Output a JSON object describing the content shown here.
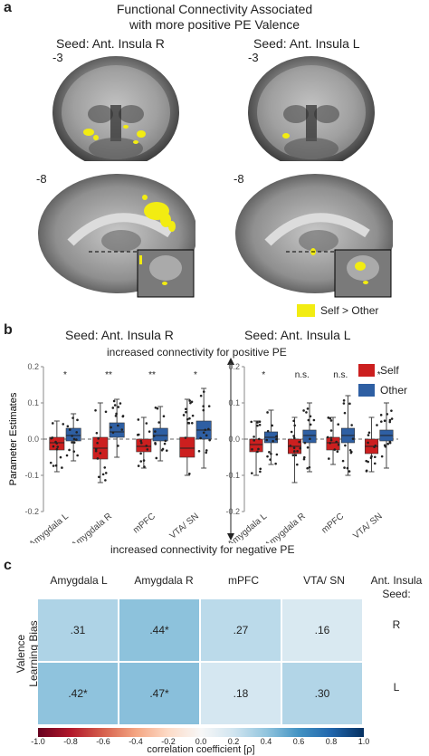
{
  "panel_a": {
    "letter": "a",
    "title_line1": "Functional Connectivity Associated",
    "title_line2": "with more positive PE Valence",
    "seed_right": "Seed: Ant. Insula R",
    "seed_left": "Seed: Ant. Insula L",
    "slice_top": "-3",
    "slice_bottom": "-8",
    "legend_label": "Self > Other",
    "legend_color": "#f2ec12"
  },
  "panel_b": {
    "letter": "b",
    "seed_right": "Seed: Ant. Insula R",
    "seed_left": "Seed: Ant. Insula L",
    "top_arrow_label": "increased connectivity for positive PE",
    "bottom_arrow_label": "increased connectivity for negative PE",
    "ylabel": "Parameter Estimates",
    "legend": [
      {
        "label": "Self",
        "color": "#cc1f1f"
      },
      {
        "label": "Other",
        "color": "#2e5fa3"
      }
    ]
  },
  "chart_data": {
    "type": "boxplot",
    "ylabel": "Parameter Estimates",
    "ylim": [
      -0.2,
      0.2
    ],
    "yticks": [
      "0.2",
      "0.1",
      "0.0",
      "-0.1",
      "-0.2"
    ],
    "categories": [
      "Amygdala L",
      "Amygdala R",
      "mPFC",
      "VTA/ SN"
    ],
    "series": [
      {
        "name": "Self",
        "color": "#cc1f1f"
      },
      {
        "name": "Other",
        "color": "#2e5fa3"
      }
    ],
    "panels": [
      {
        "seed": "Seed: Ant. Insula R",
        "significance": [
          "*",
          "**",
          "**",
          "*"
        ],
        "boxes": [
          {
            "category": "Amygdala L",
            "self": {
              "q1": -0.03,
              "median": -0.01,
              "q3": 0.005,
              "lo": -0.09,
              "hi": 0.05
            },
            "other": {
              "q1": -0.005,
              "median": 0.01,
              "q3": 0.03,
              "lo": -0.06,
              "hi": 0.07
            }
          },
          {
            "category": "Amygdala R",
            "self": {
              "q1": -0.055,
              "median": -0.025,
              "q3": 0.005,
              "lo": -0.12,
              "hi": 0.1
            },
            "other": {
              "q1": 0.005,
              "median": 0.02,
              "q3": 0.045,
              "lo": -0.05,
              "hi": 0.11
            }
          },
          {
            "category": "mPFC",
            "self": {
              "q1": -0.035,
              "median": -0.02,
              "q3": 0.0,
              "lo": -0.08,
              "hi": 0.06
            },
            "other": {
              "q1": -0.005,
              "median": 0.01,
              "q3": 0.03,
              "lo": -0.06,
              "hi": 0.09
            }
          },
          {
            "category": "VTA/ SN",
            "self": {
              "q1": -0.05,
              "median": -0.025,
              "q3": 0.005,
              "lo": -0.1,
              "hi": 0.11
            },
            "other": {
              "q1": 0.0,
              "median": 0.025,
              "q3": 0.05,
              "lo": -0.08,
              "hi": 0.14
            }
          }
        ]
      },
      {
        "seed": "Seed: Ant. Insula L",
        "significance": [
          "*",
          "n.s.",
          "n.s.",
          "*"
        ],
        "boxes": [
          {
            "category": "Amygdala L",
            "self": {
              "q1": -0.035,
              "median": -0.015,
              "q3": 0.0,
              "lo": -0.1,
              "hi": 0.05
            },
            "other": {
              "q1": -0.01,
              "median": 0.005,
              "q3": 0.02,
              "lo": -0.07,
              "hi": 0.08
            }
          },
          {
            "category": "Amygdala R",
            "self": {
              "q1": -0.04,
              "median": -0.02,
              "q3": 0.0,
              "lo": -0.12,
              "hi": 0.06
            },
            "other": {
              "q1": -0.01,
              "median": 0.01,
              "q3": 0.025,
              "lo": -0.09,
              "hi": 0.1
            }
          },
          {
            "category": "mPFC",
            "self": {
              "q1": -0.03,
              "median": -0.01,
              "q3": 0.005,
              "lo": -0.07,
              "hi": 0.06
            },
            "other": {
              "q1": -0.01,
              "median": 0.01,
              "q3": 0.03,
              "lo": -0.1,
              "hi": 0.12
            }
          },
          {
            "category": "VTA/ SN",
            "self": {
              "q1": -0.04,
              "median": -0.02,
              "q3": 0.0,
              "lo": -0.09,
              "hi": 0.06
            },
            "other": {
              "q1": -0.005,
              "median": 0.01,
              "q3": 0.025,
              "lo": -0.08,
              "hi": 0.1
            }
          }
        ]
      }
    ]
  },
  "panel_c": {
    "letter": "c",
    "columns": [
      "Amygdala L",
      "Amygdala R",
      "mPFC",
      "VTA/ SN"
    ],
    "seed_header_line1": "Ant. Insula",
    "seed_header_line2": "Seed:",
    "row_title_line1": "Valence",
    "row_title_line2": "Learning Bias",
    "rows": [
      {
        "seed": "R",
        "cells": [
          {
            "label": ".31",
            "value": 0.31
          },
          {
            "label": ".44*",
            "value": 0.44
          },
          {
            "label": ".27",
            "value": 0.27
          },
          {
            "label": ".16",
            "value": 0.16
          }
        ]
      },
      {
        "seed": "L",
        "cells": [
          {
            "label": ".42*",
            "value": 0.42
          },
          {
            "label": ".47*",
            "value": 0.47
          },
          {
            "label": ".18",
            "value": 0.18
          },
          {
            "label": ".30",
            "value": 0.3
          }
        ]
      }
    ],
    "colorbar_ticks": [
      "-1.0",
      "-0.8",
      "-0.6",
      "-0.4",
      "-0.2",
      "0.0",
      "0.2",
      "0.4",
      "0.6",
      "0.8",
      "1.0"
    ],
    "colorbar_label": "correlation coefficient [ρ]"
  }
}
